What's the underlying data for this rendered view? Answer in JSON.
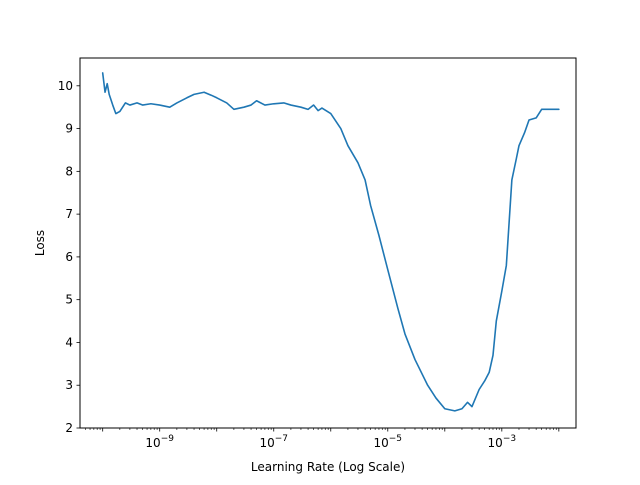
{
  "chart_data": {
    "type": "line",
    "xlabel": "Learning Rate (Log Scale)",
    "ylabel": "Loss",
    "x_scale": "log",
    "xlim": [
      4e-11,
      0.02
    ],
    "ylim": [
      2.0,
      10.65
    ],
    "x_ticks": [
      {
        "value": 1e-09,
        "base": "10",
        "exp": "−9"
      },
      {
        "value": 1e-07,
        "base": "10",
        "exp": "−7"
      },
      {
        "value": 1e-05,
        "base": "10",
        "exp": "−5"
      },
      {
        "value": 0.001,
        "base": "10",
        "exp": "−3"
      }
    ],
    "y_ticks": [
      2,
      3,
      4,
      5,
      6,
      7,
      8,
      9,
      10
    ],
    "grid": false,
    "line_color": "#1f77b4",
    "series": [
      {
        "x": [
          1e-10,
          1.1e-10,
          1.2e-10,
          1.3e-10,
          1.5e-10,
          1.7e-10,
          2e-10,
          2.5e-10,
          3e-10,
          4e-10,
          5e-10,
          7e-10,
          1e-09,
          1.5e-09,
          2e-09,
          3e-09,
          4e-09,
          6e-09,
          8e-09,
          1e-08,
          1.5e-08,
          2e-08,
          3e-08,
          4e-08,
          5e-08,
          7e-08,
          1e-07,
          1.5e-07,
          2e-07,
          3e-07,
          4e-07,
          5e-07,
          6e-07,
          7e-07,
          1e-06,
          1.5e-06,
          2e-06,
          3e-06,
          4e-06,
          5e-06,
          7e-06,
          1e-05,
          1.5e-05,
          2e-05,
          3e-05,
          5e-05,
          7e-05,
          0.0001,
          0.00015,
          0.0002,
          0.00025,
          0.0003,
          0.0004,
          0.0005,
          0.0006,
          0.0007,
          0.0008,
          0.001,
          0.0012,
          0.0015,
          0.0018,
          0.002,
          0.0025,
          0.003,
          0.004,
          0.005,
          0.007,
          0.01
        ],
        "y": [
          10.3,
          9.85,
          10.05,
          9.8,
          9.55,
          9.35,
          9.4,
          9.6,
          9.55,
          9.6,
          9.55,
          9.58,
          9.55,
          9.5,
          9.6,
          9.72,
          9.8,
          9.85,
          9.78,
          9.72,
          9.6,
          9.45,
          9.5,
          9.55,
          9.65,
          9.55,
          9.58,
          9.6,
          9.55,
          9.5,
          9.45,
          9.55,
          9.42,
          9.48,
          9.35,
          9.0,
          8.6,
          8.2,
          7.8,
          7.2,
          6.5,
          5.7,
          4.8,
          4.2,
          3.6,
          3.0,
          2.7,
          2.45,
          2.4,
          2.45,
          2.6,
          2.5,
          2.9,
          3.1,
          3.3,
          3.7,
          4.5,
          5.2,
          5.8,
          7.8,
          8.3,
          8.6,
          8.9,
          9.2,
          9.25,
          9.45,
          9.45,
          9.45
        ]
      }
    ]
  }
}
